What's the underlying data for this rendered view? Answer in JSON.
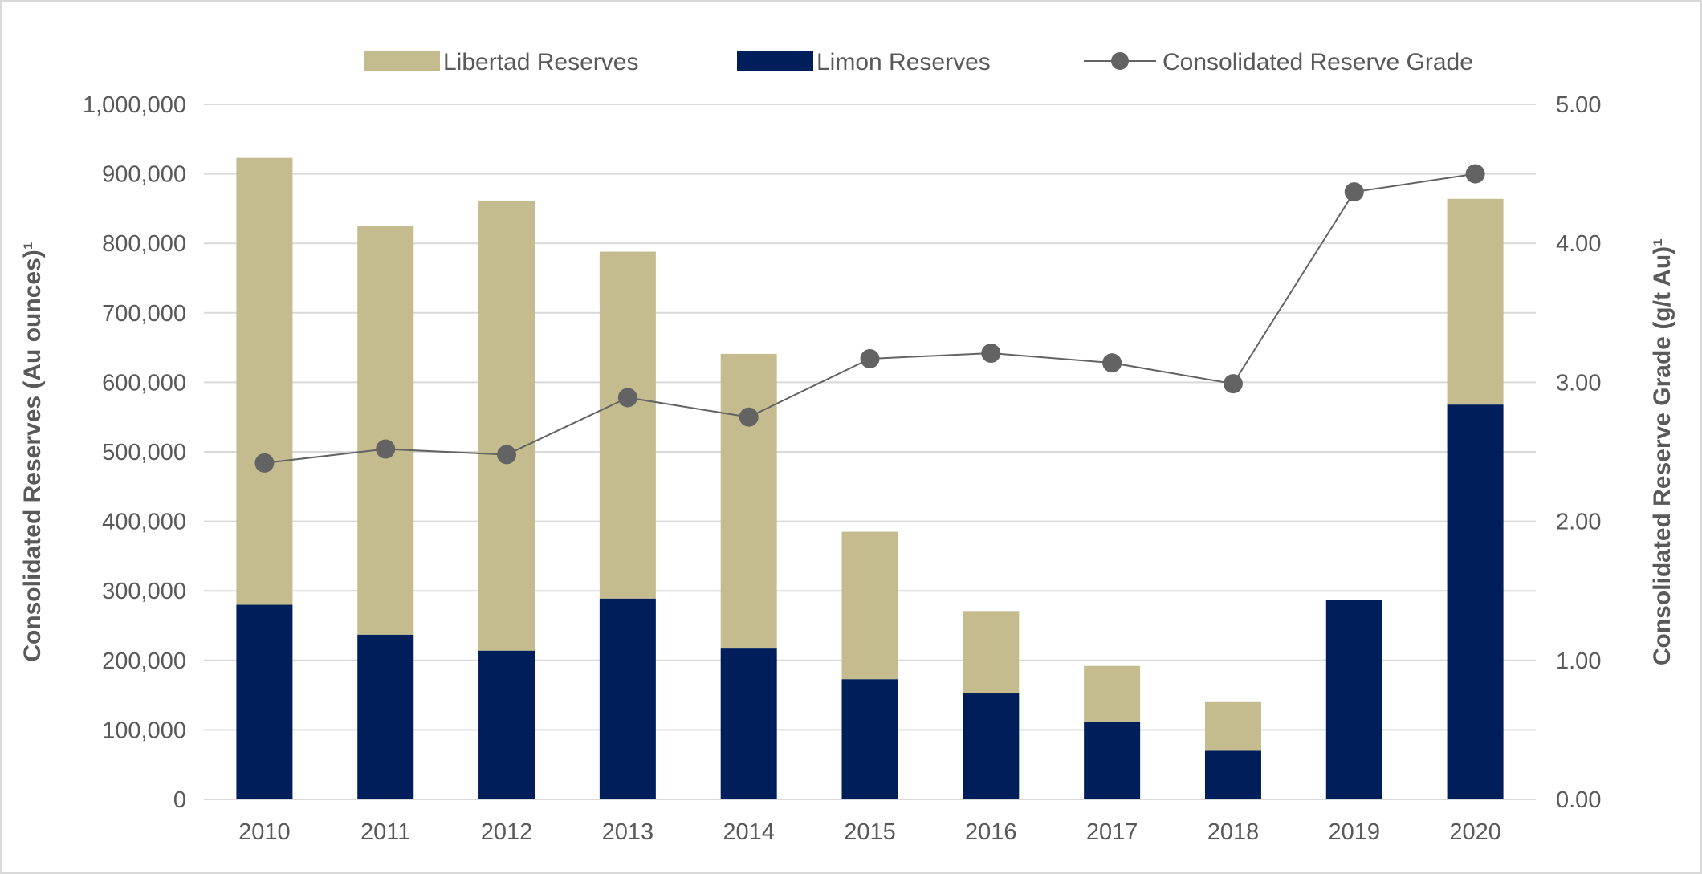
{
  "chart_data": {
    "type": "bar",
    "stacked": true,
    "categories": [
      "2010",
      "2011",
      "2012",
      "2013",
      "2014",
      "2015",
      "2016",
      "2017",
      "2018",
      "2019",
      "2020"
    ],
    "series": [
      {
        "name": "Libertad Reserves",
        "type": "bar",
        "axis": "left",
        "color": "#C4BC8E",
        "values": [
          643000,
          588000,
          647000,
          499000,
          424000,
          212000,
          118000,
          81000,
          70000,
          0,
          296000
        ]
      },
      {
        "name": "Limon Reserves",
        "type": "bar",
        "axis": "left",
        "color": "#001E5A",
        "values": [
          280000,
          237000,
          214000,
          289000,
          217000,
          173000,
          153000,
          111000,
          70000,
          287000,
          568000
        ]
      },
      {
        "name": "Consolidated Reserve Grade",
        "type": "line",
        "axis": "right",
        "color": "#636363",
        "values": [
          2.42,
          2.52,
          2.48,
          2.89,
          2.75,
          3.17,
          3.21,
          3.14,
          2.99,
          4.37,
          4.5
        ]
      }
    ],
    "ylabel": "Consolidated Reserves (Au ounces)¹",
    "y2label": "Consolidated Reserve Grade (g/t Au)¹",
    "ylim": [
      0,
      1000000
    ],
    "y2lim": [
      0,
      5
    ],
    "yticks": [
      "0",
      "100,000",
      "200,000",
      "300,000",
      "400,000",
      "500,000",
      "600,000",
      "700,000",
      "800,000",
      "900,000",
      "1,000,000"
    ],
    "y2ticks": [
      "0.00",
      "1.00",
      "2.00",
      "3.00",
      "4.00",
      "5.00"
    ],
    "grid": true,
    "legend": "top"
  }
}
